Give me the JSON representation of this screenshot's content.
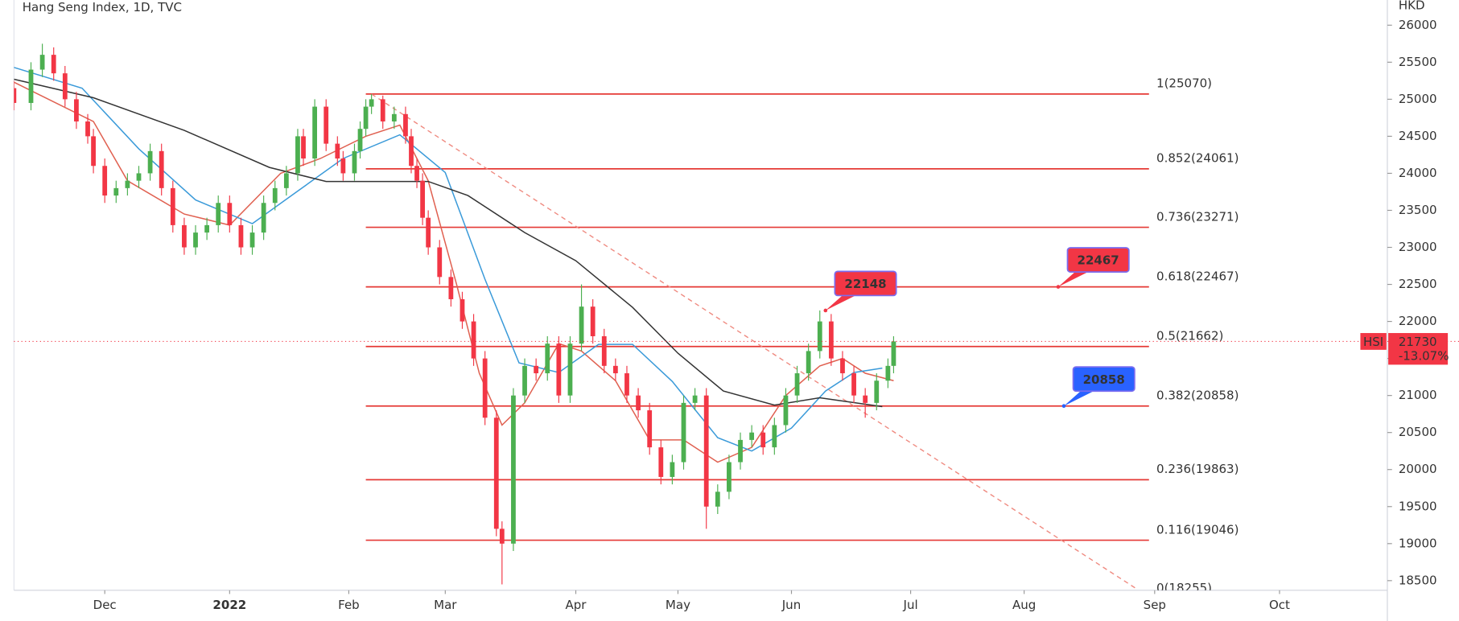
{
  "chart_data": {
    "type": "candlestick",
    "title": "Hang Seng Index, 1D, TVC",
    "y_axis_label": "HKD",
    "up_color": "#4caf50",
    "down_color": "#f23645",
    "xlim": [
      0,
      242
    ],
    "ylim": [
      18370,
      26340
    ],
    "xticks": [
      {
        "value": 16,
        "label": "Dec"
      },
      {
        "value": 38,
        "label": "2022"
      },
      {
        "value": 59,
        "label": "Feb"
      },
      {
        "value": 76,
        "label": "Mar"
      },
      {
        "value": 99,
        "label": "Apr"
      },
      {
        "value": 117,
        "label": "May"
      },
      {
        "value": 137,
        "label": "Jun"
      },
      {
        "value": 158,
        "label": "Jul"
      },
      {
        "value": 178,
        "label": "Aug"
      },
      {
        "value": 201,
        "label": "Sep"
      },
      {
        "value": 223,
        "label": "Oct"
      }
    ],
    "yticks": [
      18500,
      19000,
      19500,
      20000,
      20500,
      21000,
      21500,
      22000,
      22500,
      23000,
      23500,
      24000,
      24500,
      25000,
      25500,
      26000
    ],
    "x": [
      0,
      3,
      5,
      7,
      9,
      11,
      13,
      14,
      16,
      18,
      20,
      22,
      24,
      26,
      28,
      30,
      32,
      34,
      36,
      38,
      40,
      42,
      44,
      46,
      48,
      50,
      51,
      53,
      55,
      57,
      58,
      60,
      61,
      62,
      63,
      65,
      67,
      69,
      70,
      71,
      72,
      73,
      75,
      77,
      79,
      81,
      83,
      85,
      86,
      88,
      90,
      92,
      94,
      96,
      98,
      100,
      102,
      104,
      106,
      108,
      110,
      112,
      114,
      116,
      118,
      120,
      122,
      124,
      126,
      128,
      130,
      132,
      134,
      136,
      138,
      140,
      142,
      144,
      146,
      148,
      150,
      152,
      154,
      155
    ],
    "open": [
      25150,
      24950,
      25400,
      25600,
      25350,
      25000,
      24700,
      24500,
      24100,
      23700,
      23800,
      23900,
      24000,
      24300,
      23800,
      23300,
      23000,
      23200,
      23300,
      23600,
      23300,
      23000,
      23200,
      23600,
      23800,
      24000,
      24500,
      24200,
      24900,
      24400,
      24200,
      24000,
      24300,
      24600,
      24900,
      25000,
      24700,
      24800,
      24500,
      24100,
      23900,
      23400,
      23000,
      22600,
      22300,
      22000,
      21500,
      20700,
      19200,
      19000,
      21000,
      21400,
      21300,
      21700,
      21000,
      21700,
      22200,
      21800,
      21400,
      21300,
      21000,
      20800,
      20300,
      19900,
      20100,
      20900,
      21000,
      19500,
      19700,
      20100,
      20400,
      20500,
      20300,
      20600,
      21000,
      21300,
      21600,
      22000,
      21500,
      21300,
      21000,
      20900,
      21200,
      21400
    ],
    "high": [
      25250,
      25500,
      25750,
      25700,
      25450,
      25100,
      24800,
      24600,
      24200,
      23900,
      24000,
      24100,
      24400,
      24400,
      23900,
      23400,
      23300,
      23400,
      23700,
      23700,
      23400,
      23300,
      23700,
      23900,
      24100,
      24600,
      24600,
      25000,
      25000,
      24500,
      24300,
      24400,
      24700,
      25000,
      25070,
      25050,
      24900,
      24900,
      24600,
      24200,
      24000,
      23500,
      23100,
      22700,
      22400,
      22100,
      21600,
      20800,
      19300,
      21100,
      21500,
      21500,
      21800,
      21800,
      21800,
      22500,
      22300,
      21900,
      21500,
      21400,
      21100,
      20900,
      20400,
      20200,
      21000,
      21100,
      21100,
      19800,
      20200,
      20500,
      20600,
      20600,
      20700,
      21100,
      21400,
      21700,
      22148,
      22100,
      21600,
      21400,
      21100,
      21300,
      21500,
      21800
    ],
    "low": [
      24850,
      24850,
      25300,
      25250,
      24900,
      24600,
      24400,
      24000,
      23600,
      23600,
      23700,
      23800,
      23900,
      23700,
      23200,
      22900,
      22900,
      23100,
      23200,
      23200,
      22900,
      22900,
      23100,
      23500,
      23700,
      23900,
      24100,
      24100,
      24300,
      24100,
      23900,
      23900,
      24200,
      24500,
      24800,
      24600,
      24600,
      24400,
      24000,
      23800,
      23300,
      22900,
      22500,
      22200,
      21900,
      21400,
      20600,
      19100,
      18450,
      18900,
      20900,
      21200,
      21200,
      20900,
      20900,
      21600,
      21700,
      21300,
      21200,
      20900,
      20700,
      20200,
      19800,
      19800,
      20000,
      20800,
      19200,
      19400,
      19600,
      20000,
      20300,
      20200,
      20200,
      20500,
      20900,
      21200,
      21500,
      21400,
      21200,
      20900,
      20700,
      20800,
      21100,
      21300
    ],
    "close": [
      24950,
      25400,
      25600,
      25350,
      25000,
      24700,
      24500,
      24100,
      23700,
      23800,
      23900,
      24000,
      24300,
      23800,
      23300,
      23000,
      23200,
      23300,
      23600,
      23300,
      23000,
      23200,
      23600,
      23800,
      24000,
      24500,
      24200,
      24900,
      24400,
      24200,
      24000,
      24300,
      24600,
      24900,
      25000,
      24700,
      24800,
      24500,
      24100,
      23900,
      23400,
      23000,
      22600,
      22300,
      22000,
      21500,
      20700,
      19200,
      19000,
      21000,
      21400,
      21300,
      21700,
      21000,
      21700,
      22200,
      21800,
      21400,
      21300,
      21000,
      20800,
      20300,
      19900,
      20100,
      20900,
      21000,
      19500,
      19700,
      20100,
      20400,
      20500,
      20300,
      20600,
      21000,
      21300,
      21600,
      22000,
      21500,
      21300,
      21000,
      20900,
      21200,
      21400,
      21730
    ],
    "series": [
      {
        "color": "#e06050",
        "x": [
          0,
          14,
          20,
          30,
          38,
          47,
          54,
          62,
          68,
          73,
          78,
          82,
          86,
          90,
          96,
          100,
          106,
          112,
          118,
          124,
          130,
          136,
          142,
          146,
          150,
          155
        ],
        "values": [
          25230,
          24700,
          23900,
          23450,
          23300,
          24000,
          24200,
          24500,
          24650,
          23900,
          22500,
          21300,
          20600,
          20900,
          21700,
          21600,
          21200,
          20400,
          20400,
          20100,
          20300,
          21000,
          21400,
          21500,
          21300,
          21200
        ]
      },
      {
        "color": "#3a9ad9",
        "x": [
          0,
          12,
          22,
          32,
          42,
          50,
          58,
          68,
          76,
          83,
          89,
          96,
          103,
          109,
          116,
          124,
          130,
          137,
          143,
          148,
          153
        ],
        "values": [
          25430,
          25150,
          24330,
          23640,
          23320,
          23760,
          24200,
          24520,
          24010,
          22570,
          21440,
          21310,
          21690,
          21690,
          21190,
          20430,
          20250,
          20560,
          21060,
          21310,
          21370
        ]
      },
      {
        "color": "#333333",
        "x": [
          0,
          14,
          30,
          45,
          55,
          63,
          73,
          80,
          90,
          99,
          109,
          117,
          125,
          134,
          142,
          153
        ],
        "values": [
          25270,
          25020,
          24580,
          24080,
          23890,
          23890,
          23890,
          23700,
          23200,
          22820,
          22190,
          21570,
          21060,
          20870,
          20970,
          20850
        ]
      }
    ],
    "fib_levels": {
      "color": "#e53935",
      "x": [
        62,
        200
      ],
      "levels": [
        {
          "value": 25070,
          "label": "1(25070)"
        },
        {
          "value": 24061,
          "label": "0.852(24061)"
        },
        {
          "value": 23271,
          "label": "0.736(23271)"
        },
        {
          "value": 22467,
          "label": "0.618(22467)"
        },
        {
          "value": 21662,
          "label": "0.5(21662)"
        },
        {
          "value": 20858,
          "label": "0.382(20858)"
        },
        {
          "value": 19863,
          "label": "0.236(19863)"
        },
        {
          "value": 19046,
          "label": "0.116(19046)"
        },
        {
          "value": 18255,
          "label": "0(18255)"
        }
      ]
    },
    "trendline": {
      "color": "#ef8a80",
      "x": [
        63,
        198
      ],
      "y": [
        25070,
        18380
      ]
    },
    "callouts": [
      {
        "x": 143,
        "value": 22148,
        "color": "#f23645"
      },
      {
        "x": 184,
        "value": 22467,
        "color": "#f23645"
      },
      {
        "x": 185,
        "value": 20858,
        "color": "#2962ff"
      }
    ],
    "last_price": {
      "symbol": "HSI",
      "value": 21730,
      "change": {
        "value": -13.07,
        "label": "-13.07%"
      },
      "color": "#f23645"
    }
  }
}
